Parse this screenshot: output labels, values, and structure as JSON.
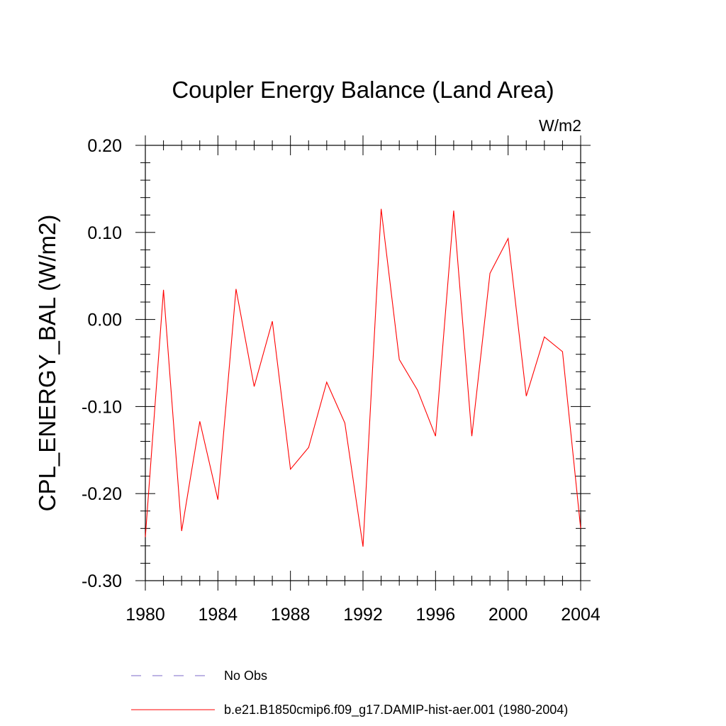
{
  "chart_data": {
    "type": "line",
    "title": "Coupler Energy Balance (Land Area)",
    "units_label": "W/m2",
    "ylabel": "CPL_ENERGY_BAL  (W/m2)",
    "xlabel": "",
    "xlim": [
      1980,
      2004
    ],
    "ylim": [
      -0.3,
      0.2
    ],
    "x_ticks": [
      1980,
      1984,
      1988,
      1992,
      1996,
      2000,
      2004
    ],
    "x_tick_labels": [
      "1980",
      "1984",
      "1988",
      "1992",
      "1996",
      "2000",
      "2004"
    ],
    "y_ticks": [
      0.2,
      0.1,
      0.0,
      -0.1,
      -0.2,
      -0.3
    ],
    "y_tick_labels": [
      "0.20",
      "0.10",
      "0.00",
      "-0.10",
      "-0.20",
      "-0.30"
    ],
    "grid": false,
    "legend_position": "bottom",
    "series": [
      {
        "name": "b.e21.B1850cmip6.f09_g17.DAMIP-hist-aer.001 (1980-2004)",
        "color": "#ff0000",
        "style": "solid",
        "x": [
          1980,
          1981,
          1982,
          1983,
          1984,
          1985,
          1986,
          1987,
          1988,
          1989,
          1990,
          1991,
          1992,
          1993,
          1994,
          1995,
          1996,
          1997,
          1998,
          1999,
          2000,
          2001,
          2002,
          2003,
          2004
        ],
        "y": [
          -0.25,
          0.034,
          -0.243,
          -0.117,
          -0.207,
          0.035,
          -0.077,
          -0.002,
          -0.172,
          -0.147,
          -0.072,
          -0.119,
          -0.261,
          0.127,
          -0.046,
          -0.081,
          -0.134,
          0.125,
          -0.134,
          0.053,
          0.093,
          -0.088,
          -0.02,
          -0.037,
          -0.24
        ]
      }
    ],
    "legend": [
      {
        "label": "No Obs",
        "color": "#7b68c8",
        "style": "dashed"
      },
      {
        "label": "b.e21.B1850cmip6.f09_g17.DAMIP-hist-aer.001 (1980-2004)",
        "color": "#ff0000",
        "style": "solid"
      }
    ]
  }
}
